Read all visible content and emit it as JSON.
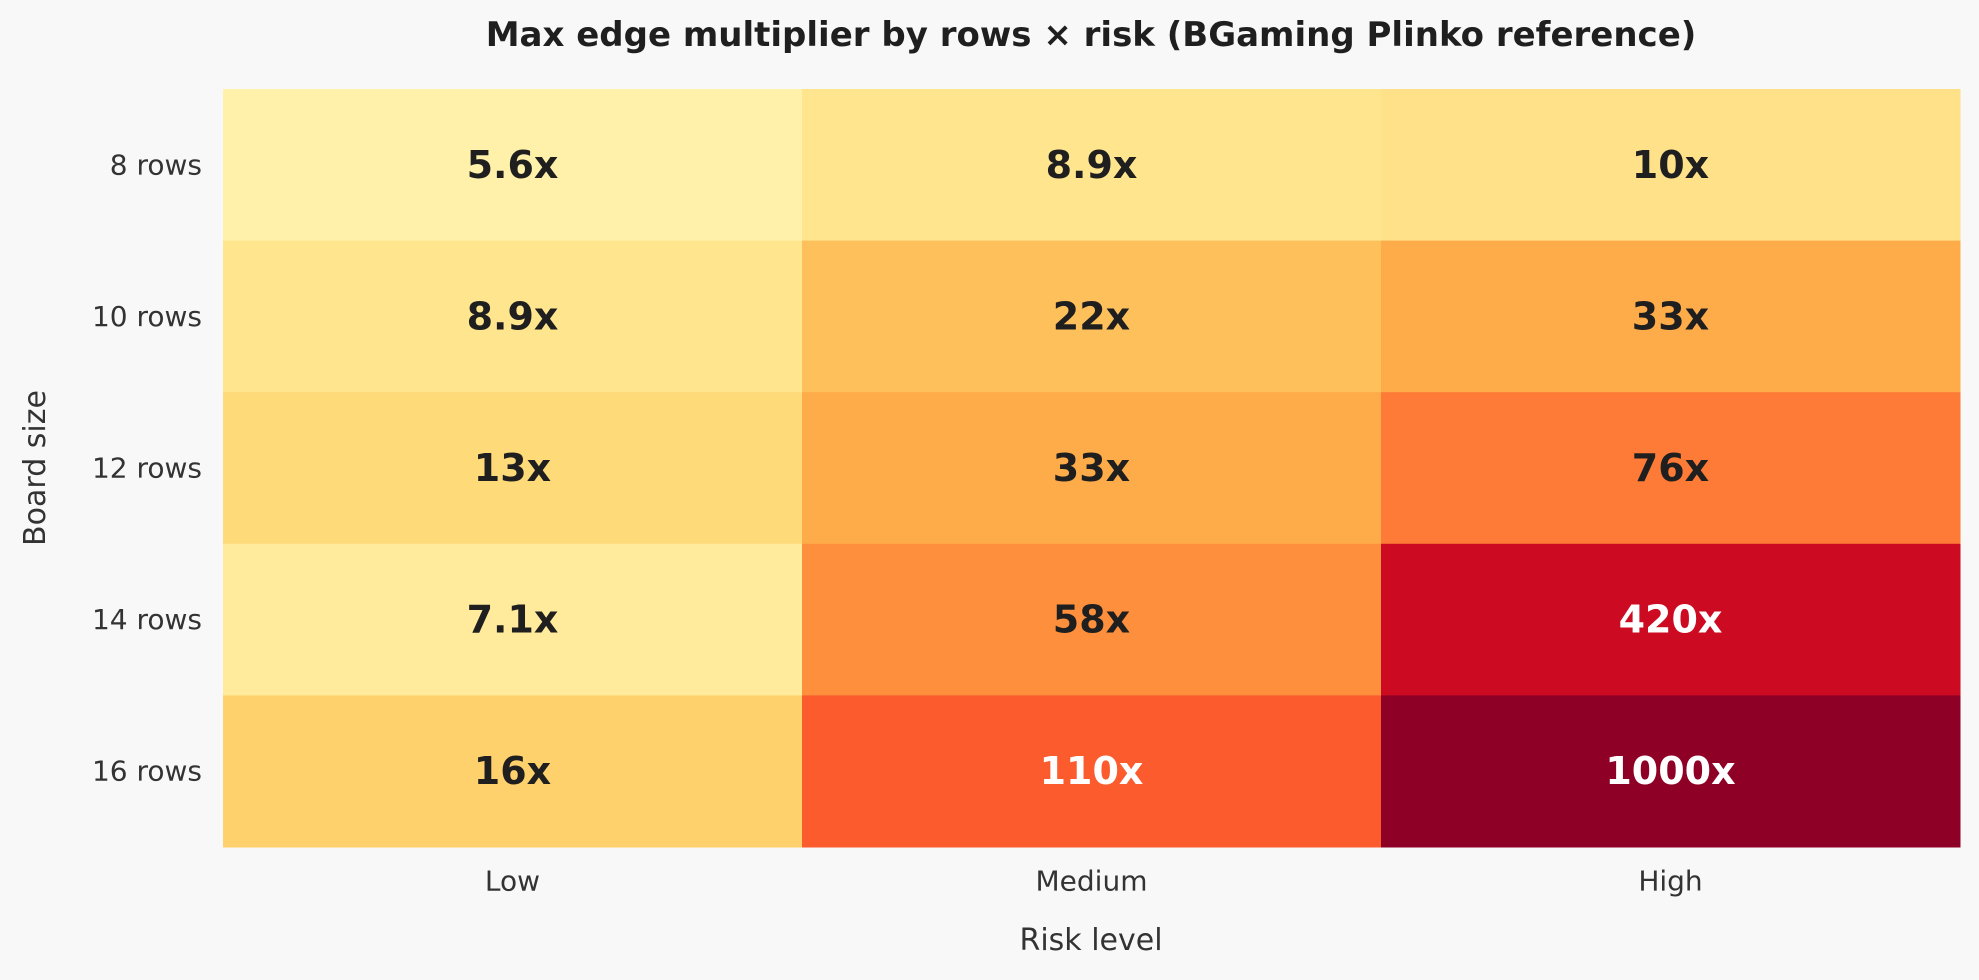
{
  "chart_data": {
    "type": "heatmap",
    "title": "Max edge multiplier by rows × risk (BGaming Plinko reference)",
    "xlabel": "Risk level",
    "ylabel": "Board size",
    "x_categories": [
      "Low",
      "Medium",
      "High"
    ],
    "y_categories": [
      "8 rows",
      "10 rows",
      "12 rows",
      "14 rows",
      "16 rows"
    ],
    "values": [
      [
        5.6,
        8.9,
        10
      ],
      [
        8.9,
        22,
        33
      ],
      [
        13,
        33,
        76
      ],
      [
        7.1,
        58,
        420
      ],
      [
        16,
        110,
        1000
      ]
    ],
    "cell_labels": [
      [
        "5.6x",
        "8.9x",
        "10x"
      ],
      [
        "8.9x",
        "22x",
        "33x"
      ],
      [
        "13x",
        "33x",
        "76x"
      ],
      [
        "7.1x",
        "58x",
        "420x"
      ],
      [
        "16x",
        "110x",
        "1000x"
      ]
    ],
    "colorscale": "YlOrRd",
    "color_scale_type": "log",
    "colorbar": false,
    "grid": false
  },
  "colors": {
    "background": "#f8f8f8",
    "text_dark": "#1f1f1f",
    "text_light": "#ffffff",
    "scale_low": "#fff0a8",
    "scale_high": "#8e0028"
  }
}
